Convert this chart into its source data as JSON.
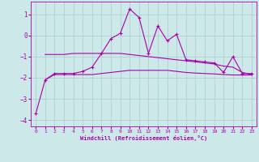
{
  "xlabel": "Windchill (Refroidissement éolien,°C)",
  "background_color": "#cce8e8",
  "grid_color": "#aacccc",
  "line_color": "#aa00aa",
  "xlim": [
    -0.5,
    23.5
  ],
  "ylim": [
    -4.3,
    1.6
  ],
  "yticks": [
    1,
    0,
    -1,
    -2,
    -3,
    -4
  ],
  "xticks": [
    0,
    1,
    2,
    3,
    4,
    5,
    6,
    7,
    8,
    9,
    10,
    11,
    12,
    13,
    14,
    15,
    16,
    17,
    18,
    19,
    20,
    21,
    22,
    23
  ],
  "series_jagged_x": [
    0,
    1,
    2,
    3,
    4,
    5,
    6,
    7,
    8,
    9,
    10,
    11,
    12,
    13,
    14,
    15,
    16,
    17,
    18,
    19,
    20,
    21,
    22,
    23
  ],
  "series_jagged_y": [
    -3.7,
    -2.1,
    -1.8,
    -1.8,
    -1.8,
    -1.7,
    -1.5,
    -0.85,
    -0.15,
    0.1,
    1.25,
    0.85,
    -0.85,
    0.45,
    -0.25,
    0.05,
    -1.15,
    -1.2,
    -1.25,
    -1.3,
    -1.75,
    -1.0,
    -1.8,
    -1.8
  ],
  "series_smooth1_x": [
    1,
    2,
    3,
    4,
    5,
    6,
    7,
    8,
    9,
    10,
    11,
    12,
    13,
    14,
    15,
    16,
    17,
    18,
    19,
    20,
    21,
    22,
    23
  ],
  "series_smooth1_y": [
    -0.9,
    -0.9,
    -0.9,
    -0.85,
    -0.85,
    -0.85,
    -0.85,
    -0.85,
    -0.85,
    -0.9,
    -0.95,
    -1.0,
    -1.05,
    -1.1,
    -1.15,
    -1.2,
    -1.25,
    -1.3,
    -1.35,
    -1.45,
    -1.5,
    -1.75,
    -1.85
  ],
  "series_smooth2_x": [
    1,
    2,
    3,
    4,
    5,
    6,
    7,
    8,
    9,
    10,
    11,
    12,
    13,
    14,
    15,
    16,
    17,
    18,
    19,
    20,
    21,
    22,
    23
  ],
  "series_smooth2_y": [
    -2.1,
    -1.85,
    -1.85,
    -1.85,
    -1.85,
    -1.85,
    -1.8,
    -1.75,
    -1.7,
    -1.65,
    -1.65,
    -1.65,
    -1.65,
    -1.65,
    -1.7,
    -1.75,
    -1.78,
    -1.8,
    -1.82,
    -1.85,
    -1.87,
    -1.87,
    -1.87
  ]
}
